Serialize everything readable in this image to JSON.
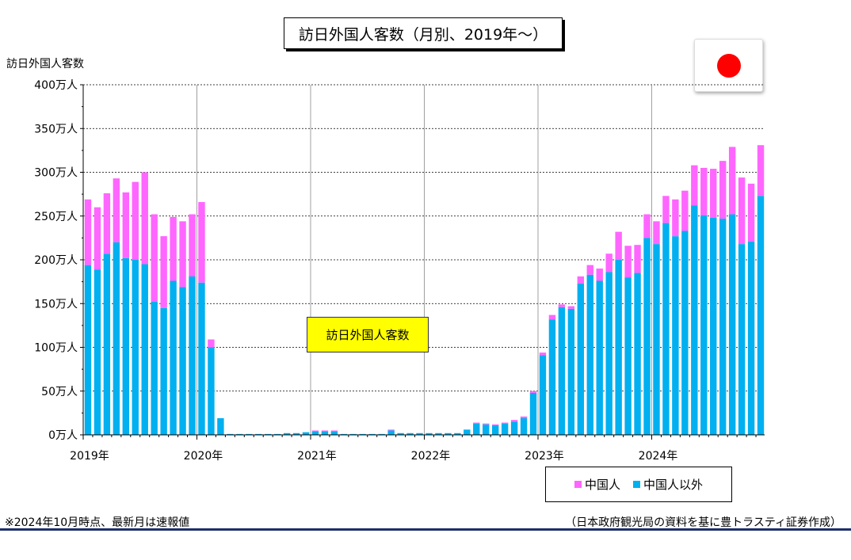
{
  "title": "訪日外国人客数（月別、2019年～）",
  "ylabel": "訪日外国人客数",
  "annotation": "訪日外国人客数",
  "footnote": "※2024年10月時点、最新月は速報値",
  "source": "（日本政府観光局の資料を基に豊トラスティ証券作成）",
  "colors": {
    "china": "#ff66ff",
    "others": "#00b0f0"
  },
  "legend": {
    "china": "中国人",
    "others": "中国人以外"
  },
  "chart_data": {
    "type": "bar",
    "stacked": true,
    "title": "訪日外国人客数（月別、2019年～）",
    "ylabel": "訪日外国人客数",
    "ylim": [
      0,
      400
    ],
    "ytick_labels": [
      "0万人",
      "50万人",
      "100万人",
      "150万人",
      "200万人",
      "250万人",
      "300万人",
      "350万人",
      "400万人"
    ],
    "xtick_labels": [
      "2019年",
      "2020年",
      "2021年",
      "2022年",
      "2023年",
      "2024年"
    ],
    "grid": true,
    "legend_position": "bottom-right",
    "series": [
      {
        "name": "中国人以外",
        "values": [
          194,
          189,
          207,
          220,
          202,
          200,
          195,
          152,
          145,
          176,
          169,
          181,
          174,
          100,
          19,
          1,
          1,
          1,
          1,
          1,
          1,
          2,
          2,
          3,
          4,
          4,
          4,
          1,
          1,
          1,
          1,
          1,
          5,
          2,
          2,
          2,
          2,
          2,
          2,
          2,
          6,
          13,
          12,
          11,
          13,
          15,
          19,
          48,
          91,
          132,
          146,
          144,
          173,
          183,
          176,
          186,
          200,
          180,
          185,
          225,
          218,
          242,
          227,
          233,
          262,
          251,
          248,
          247,
          252,
          218,
          221,
          273
        ]
      },
      {
        "name": "中国人",
        "values": [
          75,
          71,
          69,
          73,
          75,
          89,
          105,
          100,
          82,
          73,
          75,
          71,
          92,
          9,
          0,
          0,
          0,
          0,
          0,
          0,
          0,
          0,
          0,
          0,
          1,
          1,
          1,
          0,
          0,
          0,
          0,
          0,
          1,
          0,
          0,
          0,
          0,
          0,
          0,
          0,
          0,
          1,
          1,
          1,
          1,
          2,
          2,
          2,
          3,
          5,
          3,
          3,
          8,
          11,
          14,
          21,
          32,
          36,
          32,
          27,
          26,
          31,
          42,
          46,
          46,
          54,
          56,
          66,
          77,
          76,
          66,
          58
        ]
      }
    ]
  }
}
